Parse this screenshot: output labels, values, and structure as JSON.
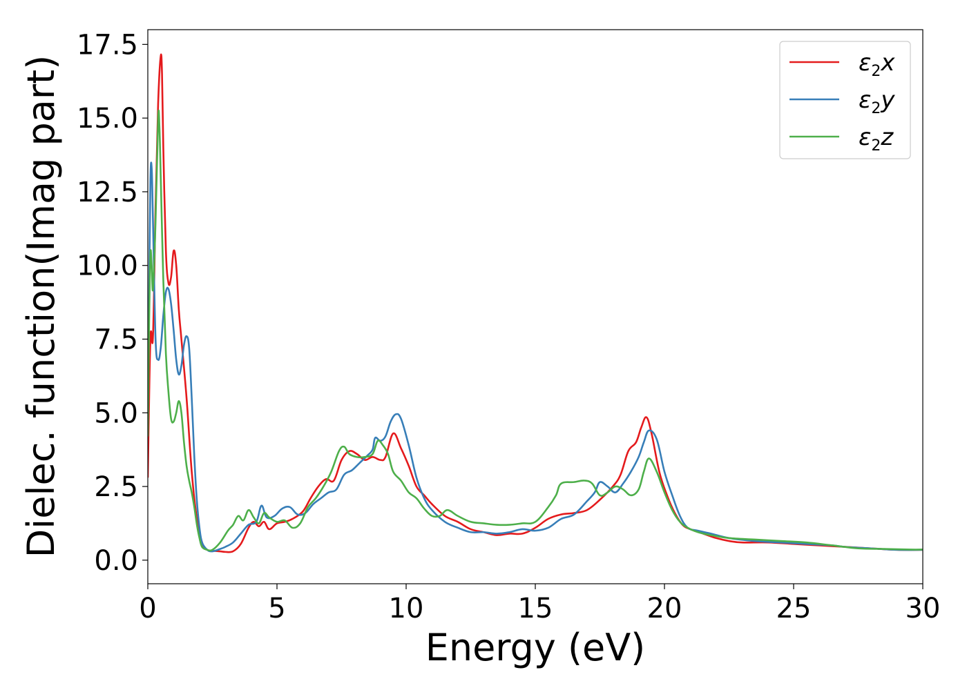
{
  "chart_data": {
    "type": "line",
    "title": "",
    "xlabel": "Energy (eV)",
    "ylabel": "Dielec. function(Imag part)",
    "xlim": [
      0,
      30
    ],
    "ylim": [
      -0.8,
      18.0
    ],
    "xticks": [
      0,
      5,
      10,
      15,
      20,
      25,
      30
    ],
    "xtick_labels": [
      "0",
      "5",
      "10",
      "15",
      "20",
      "25",
      "30"
    ],
    "yticks": [
      0.0,
      2.5,
      5.0,
      7.5,
      10.0,
      12.5,
      15.0,
      17.5
    ],
    "ytick_labels": [
      "0.0",
      "2.5",
      "5.0",
      "7.5",
      "10.0",
      "12.5",
      "15.0",
      "17.5"
    ],
    "grid": false,
    "legend_position": "top-right",
    "series": [
      {
        "name": "ε2x",
        "legend_main": "ε",
        "legend_sub": "2",
        "legend_tail": "x",
        "color": "#e41a1c",
        "x": [
          0,
          0.1,
          0.2,
          0.3,
          0.4,
          0.5,
          0.55,
          0.6,
          0.7,
          0.8,
          0.9,
          1.0,
          1.1,
          1.2,
          1.3,
          1.5,
          1.7,
          1.9,
          2.1,
          2.3,
          2.5,
          2.8,
          3.0,
          3.3,
          3.6,
          3.9,
          4.1,
          4.3,
          4.5,
          4.7,
          5.0,
          5.3,
          5.6,
          6.0,
          6.3,
          6.6,
          6.9,
          7.2,
          7.5,
          7.8,
          8.1,
          8.4,
          8.7,
          9.0,
          9.2,
          9.5,
          9.8,
          10.1,
          10.4,
          10.7,
          11.0,
          11.5,
          12.0,
          12.5,
          13.0,
          13.5,
          14.0,
          14.5,
          15.0,
          15.5,
          16.0,
          16.5,
          17.0,
          17.5,
          18.0,
          18.3,
          18.6,
          18.9,
          19.1,
          19.3,
          19.5,
          19.8,
          20.1,
          20.4,
          20.7,
          21.0,
          21.5,
          22.0,
          22.5,
          23.0,
          24.0,
          25.0,
          26.0,
          27.0,
          28.0,
          29.0,
          30.0
        ],
        "values": [
          2.8,
          7.5,
          7.6,
          12.0,
          15.5,
          17.1,
          16.5,
          14.0,
          10.5,
          9.4,
          9.6,
          10.5,
          10.0,
          8.5,
          7.5,
          5.5,
          3.0,
          1.4,
          0.6,
          0.35,
          0.32,
          0.3,
          0.28,
          0.3,
          0.55,
          1.1,
          1.3,
          1.15,
          1.3,
          1.05,
          1.25,
          1.3,
          1.4,
          1.65,
          2.1,
          2.5,
          2.75,
          2.7,
          3.4,
          3.7,
          3.6,
          3.4,
          3.5,
          3.4,
          3.5,
          4.3,
          3.8,
          3.2,
          2.5,
          2.2,
          1.9,
          1.5,
          1.3,
          1.05,
          0.95,
          0.85,
          0.9,
          0.9,
          1.1,
          1.4,
          1.55,
          1.6,
          1.7,
          2.05,
          2.5,
          2.9,
          3.7,
          4.0,
          4.5,
          4.85,
          4.3,
          3.0,
          2.2,
          1.6,
          1.2,
          1.05,
          0.9,
          0.75,
          0.65,
          0.6,
          0.6,
          0.55,
          0.5,
          0.45,
          0.4,
          0.35,
          0.35
        ]
      },
      {
        "name": "ε2y",
        "legend_main": "ε",
        "legend_sub": "2",
        "legend_tail": "y",
        "color": "#377eb8",
        "x": [
          0,
          0.05,
          0.1,
          0.15,
          0.2,
          0.3,
          0.4,
          0.5,
          0.6,
          0.7,
          0.8,
          0.9,
          1.0,
          1.1,
          1.2,
          1.3,
          1.4,
          1.5,
          1.6,
          1.7,
          1.8,
          1.9,
          2.0,
          2.1,
          2.3,
          2.5,
          2.8,
          3.0,
          3.3,
          3.6,
          3.9,
          4.2,
          4.4,
          4.6,
          4.9,
          5.2,
          5.5,
          5.8,
          6.1,
          6.4,
          6.7,
          7.0,
          7.3,
          7.6,
          7.9,
          8.2,
          8.5,
          8.7,
          8.8,
          9.0,
          9.2,
          9.4,
          9.6,
          9.8,
          10.1,
          10.4,
          10.7,
          11.0,
          11.5,
          12.0,
          12.5,
          13.0,
          13.5,
          14.0,
          14.5,
          15.0,
          15.5,
          16.0,
          16.5,
          17.0,
          17.3,
          17.5,
          17.8,
          18.1,
          18.4,
          18.7,
          19.0,
          19.2,
          19.4,
          19.7,
          20.0,
          20.3,
          20.6,
          20.9,
          21.3,
          21.8,
          22.5,
          23.5,
          24.5,
          25.5,
          26.5,
          27.0,
          28.0,
          29.0,
          30.0
        ],
        "values": [
          7.0,
          9.0,
          12.9,
          13.3,
          11.5,
          7.5,
          6.8,
          7.2,
          8.3,
          9.1,
          9.2,
          8.7,
          7.8,
          6.8,
          6.3,
          6.6,
          7.3,
          7.6,
          7.2,
          5.5,
          3.5,
          2.0,
          1.1,
          0.6,
          0.35,
          0.3,
          0.38,
          0.45,
          0.6,
          0.9,
          1.2,
          1.3,
          1.85,
          1.45,
          1.5,
          1.75,
          1.8,
          1.55,
          1.6,
          1.9,
          2.1,
          2.3,
          2.4,
          2.9,
          3.05,
          3.3,
          3.55,
          3.75,
          4.15,
          4.05,
          4.2,
          4.7,
          4.95,
          4.8,
          3.9,
          2.8,
          2.1,
          1.7,
          1.3,
          1.1,
          0.95,
          0.95,
          0.9,
          0.95,
          1.05,
          1.0,
          1.1,
          1.4,
          1.55,
          2.0,
          2.3,
          2.65,
          2.5,
          2.3,
          2.6,
          3.0,
          3.5,
          4.0,
          4.4,
          4.1,
          3.0,
          2.2,
          1.5,
          1.1,
          1.0,
          0.9,
          0.75,
          0.65,
          0.6,
          0.55,
          0.5,
          0.45,
          0.4,
          0.35,
          0.35
        ]
      },
      {
        "name": "ε2z",
        "legend_main": "ε",
        "legend_sub": "2",
        "legend_tail": "z",
        "color": "#4daf4a",
        "x": [
          0,
          0.05,
          0.1,
          0.15,
          0.2,
          0.3,
          0.4,
          0.45,
          0.5,
          0.6,
          0.7,
          0.8,
          0.9,
          1.0,
          1.1,
          1.2,
          1.3,
          1.4,
          1.5,
          1.6,
          1.7,
          1.8,
          1.9,
          2.0,
          2.1,
          2.3,
          2.5,
          2.8,
          3.1,
          3.3,
          3.5,
          3.7,
          3.9,
          4.1,
          4.3,
          4.5,
          4.7,
          5.0,
          5.3,
          5.6,
          5.9,
          6.2,
          6.5,
          6.8,
          7.1,
          7.4,
          7.6,
          7.8,
          8.1,
          8.4,
          8.7,
          8.9,
          9.1,
          9.3,
          9.5,
          9.8,
          10.1,
          10.4,
          10.7,
          11.0,
          11.3,
          11.6,
          12.0,
          12.5,
          13.0,
          13.5,
          14.0,
          14.5,
          15.0,
          15.5,
          15.8,
          16.0,
          16.5,
          16.9,
          17.2,
          17.5,
          17.8,
          18.1,
          18.4,
          18.7,
          19.0,
          19.2,
          19.4,
          19.7,
          20.0,
          20.3,
          20.6,
          20.9,
          21.3,
          21.8,
          22.5,
          23.5,
          24.5,
          25.5,
          26.5,
          27.5,
          28.5,
          29.5,
          30.0
        ],
        "values": [
          4.2,
          8.0,
          10.4,
          10.0,
          9.2,
          11.5,
          15.0,
          14.7,
          13.0,
          9.5,
          7.0,
          5.7,
          4.8,
          4.7,
          5.0,
          5.4,
          5.0,
          4.0,
          3.2,
          2.7,
          2.3,
          1.8,
          1.2,
          0.75,
          0.45,
          0.35,
          0.35,
          0.6,
          1.0,
          1.2,
          1.5,
          1.35,
          1.7,
          1.45,
          1.25,
          1.6,
          1.45,
          1.3,
          1.35,
          1.1,
          1.25,
          1.8,
          2.1,
          2.5,
          3.0,
          3.7,
          3.85,
          3.6,
          3.5,
          3.5,
          3.6,
          4.05,
          3.9,
          3.6,
          3.0,
          2.7,
          2.3,
          2.1,
          1.75,
          1.5,
          1.5,
          1.7,
          1.5,
          1.3,
          1.25,
          1.2,
          1.2,
          1.25,
          1.3,
          1.8,
          2.2,
          2.6,
          2.65,
          2.7,
          2.6,
          2.2,
          2.3,
          2.5,
          2.4,
          2.2,
          2.4,
          3.0,
          3.45,
          3.0,
          2.3,
          1.7,
          1.3,
          1.1,
          0.95,
          0.85,
          0.75,
          0.7,
          0.65,
          0.6,
          0.5,
          0.4,
          0.38,
          0.36,
          0.36
        ]
      }
    ]
  }
}
